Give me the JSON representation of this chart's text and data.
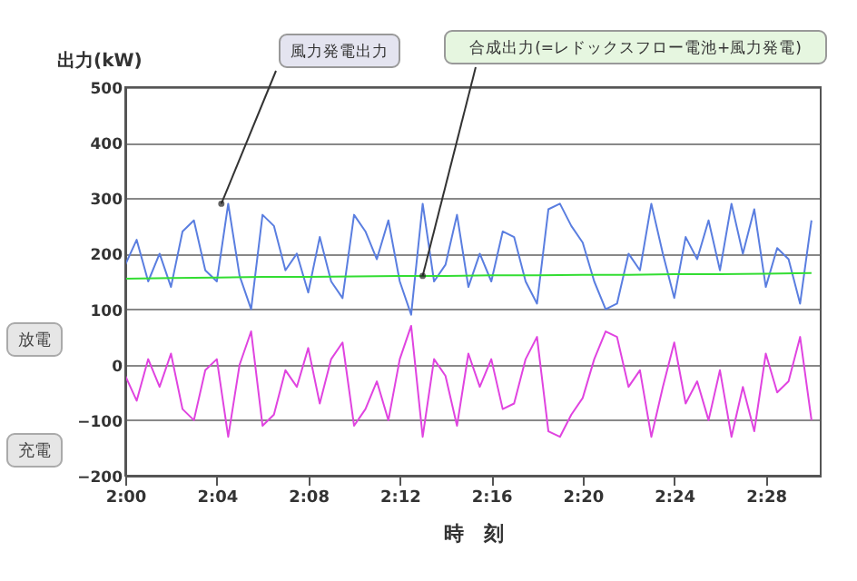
{
  "chart_data": {
    "type": "line",
    "xlabel": "時　刻",
    "ylabel": "出力(kW)",
    "x": [
      2.0,
      2.0083,
      2.0167,
      2.025,
      2.0333,
      2.0417,
      2.05,
      2.0583,
      2.0667,
      2.075,
      2.0833,
      2.0917,
      2.1,
      2.1083,
      2.1167,
      2.125,
      2.1333,
      2.1417,
      2.15,
      2.1583,
      2.1667,
      2.175,
      2.1833,
      2.1917,
      2.2,
      2.2083,
      2.2167,
      2.225,
      2.2333,
      2.2417,
      2.25,
      2.2583,
      2.2667,
      2.275,
      2.2833,
      2.2917,
      2.3,
      2.3083,
      2.3167,
      2.325,
      2.3333,
      2.3417,
      2.35,
      2.3583,
      2.3667,
      2.375,
      2.3833,
      2.3917,
      2.4,
      2.4083,
      2.4167,
      2.425,
      2.4333,
      2.4417,
      2.45,
      2.4583,
      2.4667,
      2.475,
      2.4833,
      2.4917,
      2.5
    ],
    "series": [
      {
        "color": "#5a7ee0",
        "values": [
          180,
          225,
          150,
          200,
          140,
          240,
          260,
          170,
          150,
          290,
          160,
          100,
          270,
          250,
          170,
          200,
          130,
          230,
          150,
          120,
          270,
          240,
          190,
          260,
          150,
          90,
          290,
          150,
          180,
          270,
          140,
          200,
          150,
          240,
          230,
          150,
          110,
          280,
          290,
          250,
          220,
          150,
          100,
          110,
          200,
          170,
          290,
          200,
          120,
          230,
          190,
          260,
          170,
          290,
          200,
          280,
          140,
          210,
          190,
          110,
          260
        ]
      },
      {
        "color": "#e044e0",
        "values": [
          -20,
          -65,
          10,
          -40,
          20,
          -80,
          -100,
          -10,
          10,
          -130,
          0,
          60,
          -110,
          -90,
          -10,
          -40,
          30,
          -70,
          10,
          40,
          -110,
          -80,
          -30,
          -100,
          10,
          70,
          -130,
          10,
          -20,
          -110,
          20,
          -40,
          10,
          -80,
          -70,
          10,
          50,
          -120,
          -130,
          -90,
          -60,
          10,
          60,
          50,
          -40,
          -10,
          -130,
          -40,
          40,
          -70,
          -30,
          -100,
          -10,
          -130,
          -40,
          -120,
          20,
          -50,
          -30,
          50,
          -100
        ]
      },
      {
        "color": "#33dd33",
        "x": [
          2.0,
          2.0333,
          2.0667,
          2.1,
          2.1333,
          2.1667,
          2.2,
          2.2333,
          2.2667,
          2.3,
          2.3333,
          2.3667,
          2.4,
          2.4333,
          2.4667,
          2.5
        ],
        "values": [
          155,
          156,
          157,
          158,
          158,
          159,
          160,
          160,
          161,
          161,
          162,
          162,
          163,
          163,
          164,
          165
        ]
      }
    ],
    "xlim": [
      2.0,
      2.5067
    ],
    "xticks": [
      {
        "value": 2.0,
        "label": "2:00"
      },
      {
        "value": 2.0667,
        "label": "2:04"
      },
      {
        "value": 2.1333,
        "label": "2:08"
      },
      {
        "value": 2.2,
        "label": "2:12"
      },
      {
        "value": 2.2667,
        "label": "2:16"
      },
      {
        "value": 2.3333,
        "label": "2:20"
      },
      {
        "value": 2.4,
        "label": "2:24"
      },
      {
        "value": 2.4667,
        "label": "2:28"
      }
    ],
    "ylim": [
      -200,
      500
    ],
    "yticks": [
      -200,
      -100,
      0,
      100,
      200,
      300,
      400,
      500
    ],
    "grid": "y",
    "marker": "none",
    "line_style": "solid",
    "annotations": [
      {
        "text": "風力発電出力",
        "x": 2.07,
        "y": 290
      },
      {
        "text": "合成出力(=レドックスフロー電池+風力発電)",
        "x": 2.2167,
        "y": 160
      },
      "放電",
      "充電"
    ]
  }
}
